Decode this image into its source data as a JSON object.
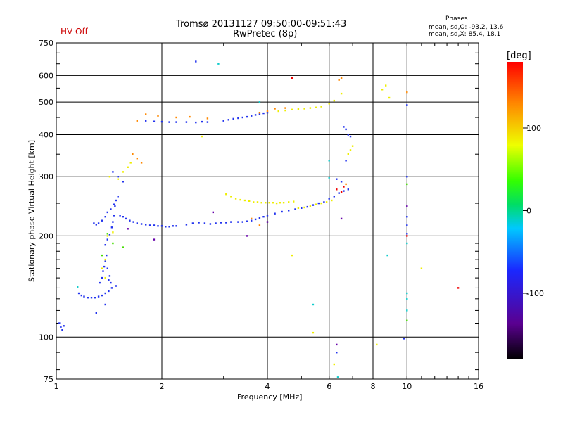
{
  "header": {
    "title": "Tromsø 20131127 09:50:00-09:51:43",
    "subtitle": "RwPretec (8p)",
    "status": "HV Off",
    "status_color": "#cc0000",
    "phases_title": "Phases",
    "phases_o": "mean, sd,O: -93.2, 13.6",
    "phases_x": "mean, sd,X:  85.4, 18.1"
  },
  "chart_data": {
    "type": "scatter",
    "xlabel": "Frequency [MHz]",
    "ylabel": "Stationary phase Virtual Height [km]",
    "xscale": "log",
    "yscale": "log",
    "xlim": [
      1,
      16
    ],
    "ylim": [
      75,
      750
    ],
    "xticks": [
      1,
      2,
      4,
      6,
      8,
      10,
      16
    ],
    "xtick_labels": [
      "1",
      "2",
      "4",
      "6",
      "8",
      "10",
      "16"
    ],
    "yticks": [
      75,
      100,
      200,
      300,
      400,
      500,
      600,
      750
    ],
    "ytick_labels": [
      "75",
      "100",
      "200",
      "300",
      "400",
      "500",
      "600",
      "750"
    ],
    "grid": true,
    "colorbar": {
      "label": "[deg]",
      "range": [
        -180,
        180
      ],
      "ticks": [
        -100,
        0,
        100
      ],
      "tick_labels": [
        "-100",
        "0",
        "100"
      ]
    },
    "series": [
      {
        "color": "#2233ee",
        "phase": -95,
        "points": [
          [
            1.02,
            110
          ],
          [
            1.03,
            107
          ],
          [
            1.04,
            105
          ],
          [
            1.05,
            108
          ],
          [
            1.16,
            135
          ],
          [
            1.18,
            133
          ],
          [
            1.2,
            132
          ],
          [
            1.23,
            131
          ],
          [
            1.26,
            131
          ],
          [
            1.29,
            131
          ],
          [
            1.32,
            132
          ],
          [
            1.35,
            133
          ],
          [
            1.38,
            135
          ],
          [
            1.41,
            137
          ],
          [
            1.44,
            140
          ],
          [
            1.48,
            142
          ],
          [
            1.33,
            145
          ],
          [
            1.35,
            150
          ],
          [
            1.36,
            157
          ],
          [
            1.37,
            162
          ],
          [
            1.38,
            168
          ],
          [
            1.39,
            175
          ],
          [
            1.4,
            160
          ],
          [
            1.41,
            148
          ],
          [
            1.42,
            152
          ],
          [
            1.43,
            145
          ],
          [
            1.38,
            188
          ],
          [
            1.4,
            195
          ],
          [
            1.42,
            202
          ],
          [
            1.44,
            212
          ],
          [
            1.45,
            220
          ],
          [
            1.46,
            230
          ],
          [
            1.47,
            245
          ],
          [
            1.48,
            255
          ],
          [
            1.5,
            262
          ],
          [
            1.28,
            218
          ],
          [
            1.3,
            216
          ],
          [
            1.32,
            218
          ],
          [
            1.35,
            222
          ],
          [
            1.38,
            228
          ],
          [
            1.4,
            235
          ],
          [
            1.43,
            240
          ],
          [
            1.46,
            248
          ],
          [
            1.52,
            230
          ],
          [
            1.55,
            228
          ],
          [
            1.58,
            225
          ],
          [
            1.62,
            222
          ],
          [
            1.66,
            220
          ],
          [
            1.7,
            218
          ],
          [
            1.75,
            217
          ],
          [
            1.8,
            216
          ],
          [
            1.85,
            215
          ],
          [
            1.9,
            215
          ],
          [
            1.95,
            214
          ],
          [
            2.0,
            214
          ],
          [
            2.05,
            213
          ],
          [
            2.1,
            213
          ],
          [
            2.15,
            214
          ],
          [
            2.2,
            214
          ],
          [
            2.35,
            216
          ],
          [
            2.45,
            218
          ],
          [
            2.55,
            219
          ],
          [
            2.65,
            218
          ],
          [
            2.75,
            217
          ],
          [
            2.85,
            218
          ],
          [
            2.95,
            219
          ],
          [
            3.05,
            219
          ],
          [
            3.15,
            220
          ],
          [
            3.3,
            220
          ],
          [
            3.4,
            220
          ],
          [
            3.5,
            221
          ],
          [
            3.6,
            222
          ],
          [
            3.7,
            224
          ],
          [
            3.8,
            226
          ],
          [
            3.9,
            228
          ],
          [
            4.0,
            230
          ],
          [
            4.2,
            233
          ],
          [
            4.4,
            236
          ],
          [
            4.6,
            238
          ],
          [
            4.8,
            240
          ],
          [
            5.0,
            242
          ],
          [
            5.2,
            244
          ],
          [
            5.4,
            247
          ],
          [
            5.6,
            250
          ],
          [
            5.8,
            252
          ],
          [
            6.0,
            258
          ],
          [
            6.2,
            262
          ],
          [
            6.4,
            268
          ],
          [
            6.6,
            272
          ],
          [
            6.8,
            275
          ],
          [
            6.3,
            295
          ],
          [
            6.5,
            290
          ],
          [
            6.7,
            335
          ],
          [
            1.8,
            440
          ],
          [
            1.9,
            438
          ],
          [
            2.0,
            437
          ],
          [
            2.1,
            436
          ],
          [
            2.2,
            436
          ],
          [
            2.35,
            436
          ],
          [
            2.5,
            435
          ],
          [
            2.6,
            437
          ],
          [
            2.7,
            436
          ],
          [
            3.0,
            440
          ],
          [
            3.1,
            443
          ],
          [
            3.2,
            446
          ],
          [
            3.3,
            448
          ],
          [
            3.4,
            450
          ],
          [
            3.5,
            452
          ],
          [
            3.6,
            455
          ],
          [
            3.7,
            458
          ],
          [
            3.8,
            460
          ],
          [
            3.9,
            463
          ],
          [
            4.0,
            465
          ],
          [
            6.6,
            422
          ],
          [
            6.7,
            415
          ],
          [
            6.8,
            400
          ],
          [
            6.9,
            395
          ],
          [
            1.45,
            310
          ],
          [
            1.5,
            300
          ],
          [
            1.55,
            290
          ],
          [
            1.3,
            118
          ],
          [
            1.38,
            125
          ],
          [
            2.5,
            660
          ],
          [
            6.3,
            90
          ],
          [
            10.0,
            228
          ],
          [
            10.0,
            215
          ],
          [
            10.0,
            203
          ],
          [
            10.0,
            490
          ],
          [
            10.0,
            300
          ],
          [
            9.8,
            99
          ]
        ]
      },
      {
        "color": "#eeee00",
        "phase": 110,
        "points": [
          [
            3.05,
            266
          ],
          [
            3.15,
            262
          ],
          [
            3.25,
            258
          ],
          [
            3.35,
            256
          ],
          [
            3.45,
            255
          ],
          [
            3.55,
            254
          ],
          [
            3.65,
            252
          ],
          [
            3.75,
            252
          ],
          [
            3.85,
            251
          ],
          [
            3.95,
            251
          ],
          [
            4.05,
            251
          ],
          [
            4.15,
            251
          ],
          [
            4.25,
            250
          ],
          [
            4.35,
            251
          ],
          [
            4.45,
            251
          ],
          [
            4.6,
            252
          ],
          [
            4.75,
            253
          ],
          [
            4.9,
            242
          ],
          [
            5.1,
            243
          ],
          [
            5.3,
            245
          ],
          [
            5.5,
            248
          ],
          [
            5.7,
            250
          ],
          [
            5.9,
            252
          ],
          [
            6.1,
            255
          ],
          [
            4.3,
            470
          ],
          [
            4.5,
            472
          ],
          [
            4.7,
            475
          ],
          [
            4.9,
            477
          ],
          [
            5.1,
            478
          ],
          [
            5.3,
            480
          ],
          [
            5.5,
            482
          ],
          [
            5.7,
            485
          ],
          [
            6.0,
            495
          ],
          [
            6.2,
            505
          ],
          [
            6.8,
            350
          ],
          [
            6.9,
            360
          ],
          [
            7.0,
            370
          ],
          [
            1.42,
            300
          ],
          [
            1.5,
            295
          ],
          [
            1.55,
            310
          ],
          [
            1.6,
            320
          ],
          [
            1.63,
            330
          ],
          [
            1.4,
            200
          ],
          [
            1.45,
            205
          ],
          [
            1.38,
            170
          ],
          [
            1.35,
            160
          ],
          [
            1.38,
            150
          ],
          [
            2.6,
            395
          ],
          [
            6.5,
            530
          ],
          [
            8.5,
            545
          ],
          [
            8.7,
            560
          ],
          [
            8.9,
            515
          ],
          [
            11.0,
            160
          ],
          [
            4.7,
            175
          ],
          [
            5.4,
            103
          ],
          [
            6.2,
            83
          ],
          [
            8.2,
            95
          ]
        ]
      },
      {
        "color": "#ff8800",
        "phase": 140,
        "points": [
          [
            1.8,
            460
          ],
          [
            1.95,
            455
          ],
          [
            2.2,
            450
          ],
          [
            2.4,
            452
          ],
          [
            2.7,
            447
          ],
          [
            1.65,
            350
          ],
          [
            1.7,
            340
          ],
          [
            1.75,
            330
          ],
          [
            3.8,
            465
          ],
          [
            4.0,
            470
          ],
          [
            4.2,
            478
          ],
          [
            3.6,
            225
          ],
          [
            3.8,
            215
          ],
          [
            6.4,
            582
          ],
          [
            6.5,
            590
          ],
          [
            10.0,
            535
          ],
          [
            4.5,
            480
          ],
          [
            6.7,
            285
          ],
          [
            1.7,
            440
          ]
        ]
      },
      {
        "color": "#ee0000",
        "phase": 175,
        "points": [
          [
            6.3,
            275
          ],
          [
            6.5,
            270
          ],
          [
            6.6,
            280
          ],
          [
            10.0,
            200
          ],
          [
            4.7,
            590
          ],
          [
            14.0,
            140
          ]
        ]
      },
      {
        "color": "#11cccc",
        "phase": 10,
        "points": [
          [
            1.15,
            141
          ],
          [
            2.9,
            650
          ],
          [
            3.8,
            500
          ],
          [
            5.4,
            125
          ],
          [
            6.0,
            335
          ],
          [
            10.0,
            130
          ],
          [
            10.0,
            120
          ],
          [
            10.0,
            135
          ],
          [
            6.35,
            76
          ],
          [
            8.8,
            175
          ],
          [
            10.0,
            190
          ],
          [
            6.0,
            298
          ]
        ]
      },
      {
        "color": "#44dd00",
        "phase": 50,
        "points": [
          [
            1.4,
            203
          ],
          [
            1.45,
            190
          ],
          [
            1.35,
            175
          ],
          [
            1.55,
            185
          ],
          [
            10.0,
            112
          ],
          [
            10.0,
            285
          ]
        ]
      },
      {
        "color": "#6600aa",
        "phase": -140,
        "points": [
          [
            6.3,
            95
          ],
          [
            3.5,
            200
          ],
          [
            2.8,
            235
          ],
          [
            4.0,
            220
          ],
          [
            1.9,
            195
          ],
          [
            1.6,
            210
          ],
          [
            6.5,
            225
          ],
          [
            10.0,
            245
          ]
        ]
      }
    ]
  }
}
